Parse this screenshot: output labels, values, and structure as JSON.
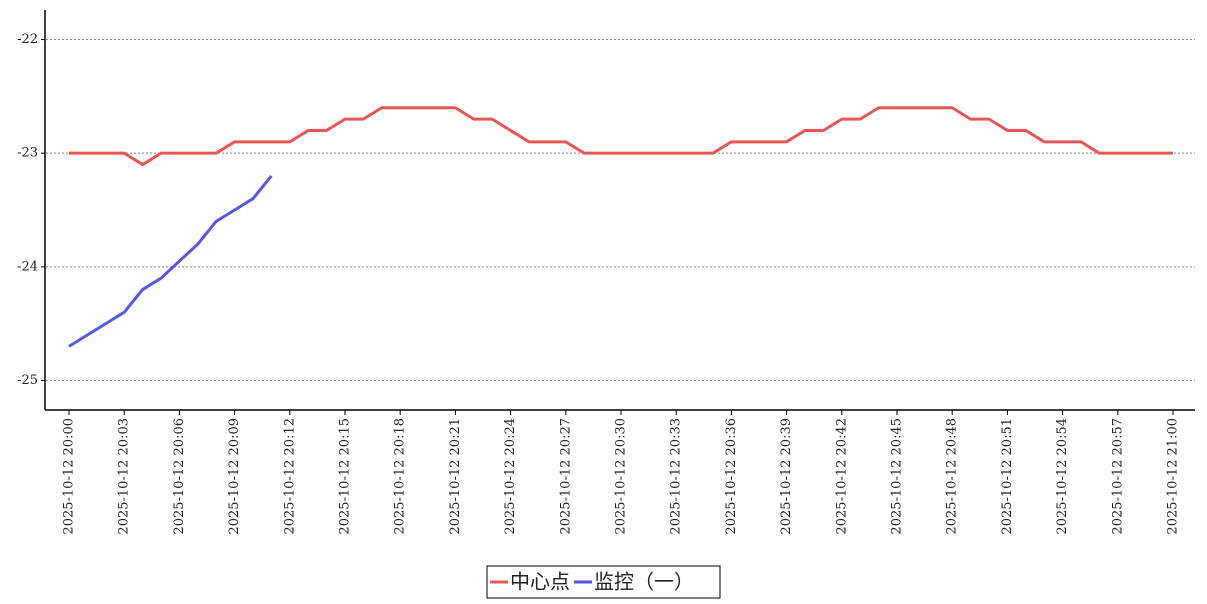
{
  "chart_data": {
    "type": "line",
    "x": [
      "2025-10-12 20:00",
      "2025-10-12 20:01",
      "2025-10-12 20:02",
      "2025-10-12 20:03",
      "2025-10-12 20:04",
      "2025-10-12 20:05",
      "2025-10-12 20:06",
      "2025-10-12 20:07",
      "2025-10-12 20:08",
      "2025-10-12 20:09",
      "2025-10-12 20:10",
      "2025-10-12 20:11",
      "2025-10-12 20:12",
      "2025-10-12 20:13",
      "2025-10-12 20:14",
      "2025-10-12 20:15",
      "2025-10-12 20:16",
      "2025-10-12 20:17",
      "2025-10-12 20:18",
      "2025-10-12 20:19",
      "2025-10-12 20:20",
      "2025-10-12 20:21",
      "2025-10-12 20:22",
      "2025-10-12 20:23",
      "2025-10-12 20:24",
      "2025-10-12 20:25",
      "2025-10-12 20:26",
      "2025-10-12 20:27",
      "2025-10-12 20:28",
      "2025-10-12 20:29",
      "2025-10-12 20:30",
      "2025-10-12 20:31",
      "2025-10-12 20:32",
      "2025-10-12 20:33",
      "2025-10-12 20:34",
      "2025-10-12 20:35",
      "2025-10-12 20:36",
      "2025-10-12 20:37",
      "2025-10-12 20:38",
      "2025-10-12 20:39",
      "2025-10-12 20:40",
      "2025-10-12 20:41",
      "2025-10-12 20:42",
      "2025-10-12 20:43",
      "2025-10-12 20:44",
      "2025-10-12 20:45",
      "2025-10-12 20:46",
      "2025-10-12 20:47",
      "2025-10-12 20:48",
      "2025-10-12 20:49",
      "2025-10-12 20:50",
      "2025-10-12 20:51",
      "2025-10-12 20:52",
      "2025-10-12 20:53",
      "2025-10-12 20:54",
      "2025-10-12 20:55",
      "2025-10-12 20:56",
      "2025-10-12 20:57",
      "2025-10-12 20:58",
      "2025-10-12 20:59",
      "2025-10-12 21:00"
    ],
    "xticks": [
      "2025-10-12 20:00",
      "2025-10-12 20:03",
      "2025-10-12 20:06",
      "2025-10-12 20:09",
      "2025-10-12 20:12",
      "2025-10-12 20:15",
      "2025-10-12 20:18",
      "2025-10-12 20:21",
      "2025-10-12 20:24",
      "2025-10-12 20:27",
      "2025-10-12 20:30",
      "2025-10-12 20:33",
      "2025-10-12 20:36",
      "2025-10-12 20:39",
      "2025-10-12 20:42",
      "2025-10-12 20:45",
      "2025-10-12 20:48",
      "2025-10-12 20:51",
      "2025-10-12 20:54",
      "2025-10-12 20:57",
      "2025-10-12 21:00"
    ],
    "series": [
      {
        "name": "中心点",
        "color": "#e85757",
        "values": [
          -23,
          -23,
          -23,
          -23,
          -23.1,
          -23,
          -23,
          -23,
          -23,
          -22.9,
          -22.9,
          -22.9,
          -22.9,
          -22.8,
          -22.8,
          -22.7,
          -22.7,
          -22.6,
          -22.6,
          -22.6,
          -22.6,
          -22.6,
          -22.7,
          -22.7,
          -22.8,
          -22.9,
          -22.9,
          -22.9,
          -23,
          -23,
          -23,
          -23,
          -23,
          -23,
          -23,
          -23,
          -22.9,
          -22.9,
          -22.9,
          -22.9,
          -22.8,
          -22.8,
          -22.7,
          -22.7,
          -22.6,
          -22.6,
          -22.6,
          -22.6,
          -22.6,
          -22.7,
          -22.7,
          -22.8,
          -22.8,
          -22.9,
          -22.9,
          -22.9,
          -23,
          -23,
          -23,
          -23,
          -23
        ]
      },
      {
        "name": "监控（一）",
        "color": "#5757e0",
        "values": [
          -24.7,
          -24.6,
          -24.5,
          -24.4,
          -24.2,
          -24.1,
          -23.95,
          -23.8,
          -23.6,
          -23.5,
          -23.4,
          -23.2,
          null,
          null,
          null,
          null,
          null,
          null,
          null,
          null,
          null,
          null,
          null,
          null,
          null,
          null,
          null,
          null,
          null,
          null,
          null,
          null,
          null,
          null,
          null,
          null,
          null,
          null,
          null,
          null,
          null,
          null,
          null,
          null,
          null,
          null,
          null,
          null,
          null,
          null,
          null,
          null,
          null,
          null,
          null,
          null,
          null,
          null,
          null,
          null,
          null
        ]
      }
    ],
    "ylim": [
      -25.26,
      -21.74
    ],
    "yticks": [
      -25,
      -24,
      -23,
      -22
    ],
    "grid": true,
    "legend": "bottom"
  }
}
